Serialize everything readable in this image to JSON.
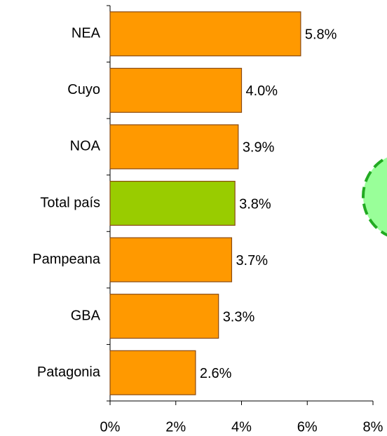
{
  "chart_data": {
    "type": "bar",
    "orientation": "horizontal",
    "categories": [
      "NEA",
      "Cuyo",
      "NOA",
      "Total país",
      "Pampeana",
      "GBA",
      "Patagonia"
    ],
    "values": [
      5.8,
      4.0,
      3.9,
      3.8,
      3.7,
      3.3,
      2.6
    ],
    "value_labels": [
      "5.8%",
      "4.0%",
      "3.9%",
      "3.8%",
      "3.7%",
      "3.3%",
      "2.6%"
    ],
    "colors": [
      "#ff9900",
      "#ff9900",
      "#ff9900",
      "#99cc00",
      "#ff9900",
      "#ff9900",
      "#ff9900"
    ],
    "xlim": [
      0,
      8
    ],
    "xticks": [
      {
        "value": 0,
        "label": "0%"
      },
      {
        "value": 2,
        "label": "2%"
      },
      {
        "value": 4,
        "label": "4%"
      },
      {
        "value": 6,
        "label": "6%"
      },
      {
        "value": 8,
        "label": "8%"
      }
    ],
    "grid": false
  }
}
